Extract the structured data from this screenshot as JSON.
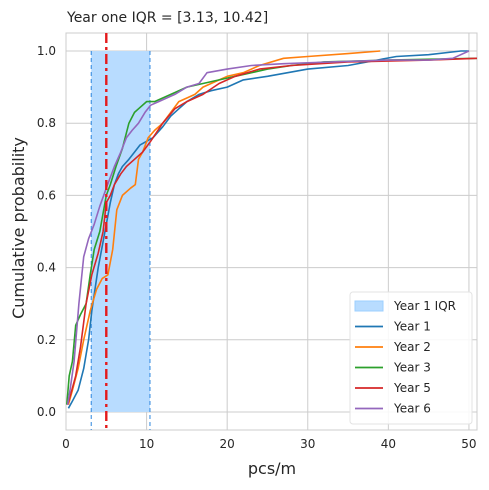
{
  "chart_data": {
    "type": "line",
    "title": "Year one IQR = [3.13, 10.42]",
    "xlabel": "pcs/m",
    "ylabel": "Cumulative probability",
    "xlim": [
      0,
      51
    ],
    "ylim": [
      -0.05,
      1.05
    ],
    "xticks": [
      "0",
      "10",
      "20",
      "30",
      "40",
      "50"
    ],
    "yticks": [
      "0.0",
      "0.2",
      "0.4",
      "0.6",
      "0.8",
      "1.0"
    ],
    "grid": true,
    "legend_position": "lower-right",
    "iqr": {
      "name": "Year 1 IQR",
      "low": 3.13,
      "high": 10.42,
      "color": "#b8dcff",
      "edge": "#2e86de"
    },
    "median": {
      "x": 5,
      "color": "#e41a1c"
    },
    "series": [
      {
        "name": "Year 1",
        "color": "#1f77b4",
        "x": [
          0.3,
          0.8,
          1.5,
          2.2,
          2.8,
          3.2,
          3.6,
          4.0,
          4.5,
          5.0,
          5.5,
          6.0,
          6.5,
          7.0,
          7.8,
          8.5,
          9.2,
          10.0,
          10.8,
          12.0,
          13.0,
          14.0,
          15.0,
          16.5,
          18.0,
          20.0,
          22.0,
          25.0,
          30.0,
          35.0,
          41.0,
          45.0,
          49.0,
          50.0
        ],
        "y": [
          0.01,
          0.03,
          0.06,
          0.12,
          0.2,
          0.28,
          0.34,
          0.4,
          0.46,
          0.52,
          0.58,
          0.63,
          0.66,
          0.68,
          0.7,
          0.72,
          0.74,
          0.75,
          0.76,
          0.79,
          0.82,
          0.84,
          0.86,
          0.88,
          0.89,
          0.9,
          0.92,
          0.93,
          0.95,
          0.96,
          0.985,
          0.99,
          1.0,
          1.0
        ]
      },
      {
        "name": "Year 2",
        "color": "#ff7f0e",
        "x": [
          0.3,
          0.8,
          1.5,
          2.2,
          3.0,
          3.8,
          4.5,
          5.2,
          5.8,
          6.3,
          7.0,
          8.0,
          8.6,
          9.0,
          9.5,
          10.2,
          11.0,
          12.0,
          13.0,
          14.0,
          15.0,
          16.0,
          17.0,
          18.0,
          20.0,
          22.0,
          24.0,
          27.0,
          30.0,
          35.0,
          39.0
        ],
        "y": [
          0.02,
          0.06,
          0.12,
          0.2,
          0.28,
          0.34,
          0.37,
          0.38,
          0.45,
          0.56,
          0.6,
          0.62,
          0.63,
          0.7,
          0.72,
          0.76,
          0.78,
          0.8,
          0.83,
          0.86,
          0.87,
          0.88,
          0.9,
          0.91,
          0.93,
          0.94,
          0.96,
          0.98,
          0.985,
          0.993,
          1.0
        ]
      },
      {
        "name": "Year 3",
        "color": "#2ca02c",
        "x": [
          0.1,
          0.4,
          0.8,
          1.2,
          1.8,
          2.5,
          3.0,
          3.5,
          4.2,
          5.0,
          5.5,
          6.2,
          7.0,
          7.8,
          8.5,
          9.0,
          10.0,
          11.0,
          13.0,
          15.0,
          17.0,
          19.0,
          21.0,
          23.0,
          25.0,
          28.0,
          32.0,
          40.0,
          51.0
        ],
        "y": [
          0.02,
          0.1,
          0.14,
          0.24,
          0.27,
          0.3,
          0.38,
          0.45,
          0.5,
          0.6,
          0.63,
          0.68,
          0.73,
          0.8,
          0.83,
          0.84,
          0.86,
          0.86,
          0.88,
          0.9,
          0.91,
          0.92,
          0.93,
          0.94,
          0.95,
          0.96,
          0.97,
          0.975,
          0.98
        ]
      },
      {
        "name": "Year 5",
        "color": "#d62728",
        "x": [
          0.2,
          0.6,
          1.2,
          1.8,
          2.5,
          3.2,
          4.0,
          4.6,
          5.0,
          5.5,
          6.0,
          6.8,
          7.5,
          8.5,
          9.5,
          10.5,
          12.0,
          13.5,
          15.0,
          17.0,
          19.0,
          21.0,
          24.0,
          28.0,
          35.0,
          45.0,
          51.0
        ],
        "y": [
          0.02,
          0.05,
          0.1,
          0.18,
          0.3,
          0.38,
          0.44,
          0.5,
          0.58,
          0.6,
          0.63,
          0.66,
          0.68,
          0.7,
          0.72,
          0.75,
          0.8,
          0.84,
          0.86,
          0.88,
          0.91,
          0.93,
          0.95,
          0.96,
          0.97,
          0.975,
          0.98
        ]
      },
      {
        "name": "Year 6",
        "color": "#9467bd",
        "x": [
          0.2,
          0.5,
          1.0,
          1.6,
          2.2,
          2.8,
          3.5,
          4.2,
          5.0,
          5.5,
          6.0,
          6.8,
          7.5,
          8.2,
          9.0,
          9.8,
          10.5,
          11.5,
          12.5,
          13.5,
          15.0,
          16.5,
          17.5,
          20.0,
          23.0,
          27.0,
          33.0,
          40.0,
          45.0,
          48.0,
          50.0
        ],
        "y": [
          0.02,
          0.06,
          0.14,
          0.3,
          0.43,
          0.48,
          0.52,
          0.57,
          0.62,
          0.65,
          0.68,
          0.72,
          0.76,
          0.78,
          0.8,
          0.83,
          0.85,
          0.86,
          0.87,
          0.88,
          0.9,
          0.91,
          0.94,
          0.95,
          0.96,
          0.965,
          0.97,
          0.975,
          0.975,
          0.98,
          1.0
        ]
      }
    ]
  }
}
